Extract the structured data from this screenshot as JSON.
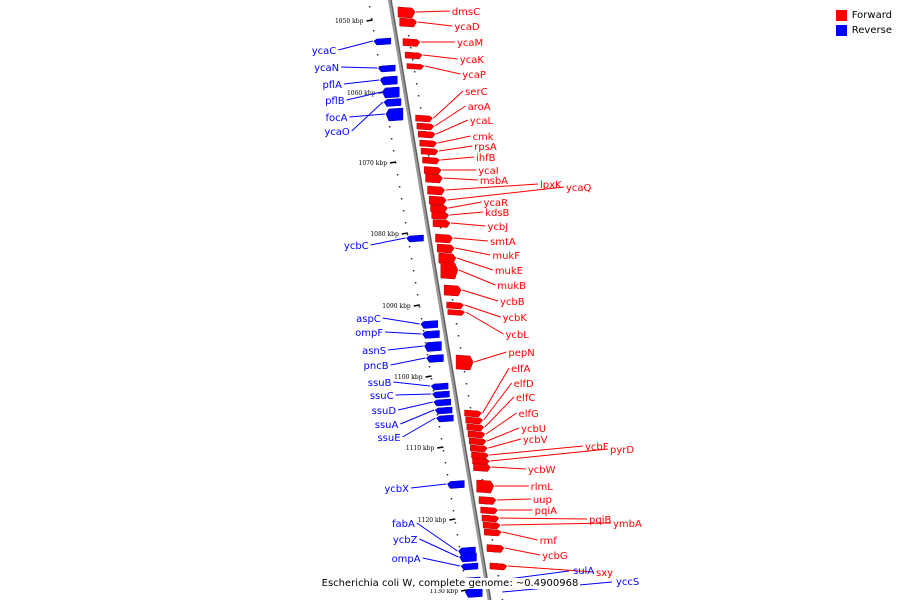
{
  "caption": "Escherichia coli W, complete genome: ~0.4900968",
  "legend": [
    {
      "label": "Forward",
      "color": "#ff0000"
    },
    {
      "label": "Reverse",
      "color": "#0000ff"
    }
  ],
  "colors": {
    "forward": "#ff0000",
    "reverse": "#0000ff",
    "axis": "#808080"
  },
  "scale_unit": "kbp",
  "ticks": [
    1050,
    1060,
    1070,
    1080,
    1090,
    1100,
    1110,
    1120,
    1130
  ],
  "forward_genes": [
    "dmsC",
    "ycaD",
    "ycaM",
    "ycaK",
    "ycaP",
    "serC",
    "aroA",
    "ycaL",
    "cmk",
    "rpsA",
    "ihfB",
    "ycaI",
    "msbA",
    "lpxK",
    "ycaQ",
    "ycaR",
    "kdsB",
    "ycbJ",
    "smtA",
    "mukF",
    "mukE",
    "mukB",
    "ycbB",
    "ycbK",
    "ycbL",
    "pepN",
    "elfA",
    "elfD",
    "elfC",
    "elfG",
    "ycbU",
    "ycbV",
    "ycbF",
    "pyrD",
    "ycbW",
    "rlmL",
    "uup",
    "pqiA",
    "pqiB",
    "ymbA",
    "rmf",
    "ycbG",
    "sxy"
  ],
  "reverse_genes": [
    "ycaC",
    "ycaN",
    "pflA",
    "pflB",
    "focA",
    "ycaO",
    "ycbC",
    "aspC",
    "ompF",
    "asnS",
    "pncB",
    "ssuB",
    "ssuC",
    "ssuD",
    "ssuA",
    "ssuE",
    "ycbX",
    "fabA",
    "ycbZ",
    "ompA",
    "sulA",
    "yccS"
  ]
}
